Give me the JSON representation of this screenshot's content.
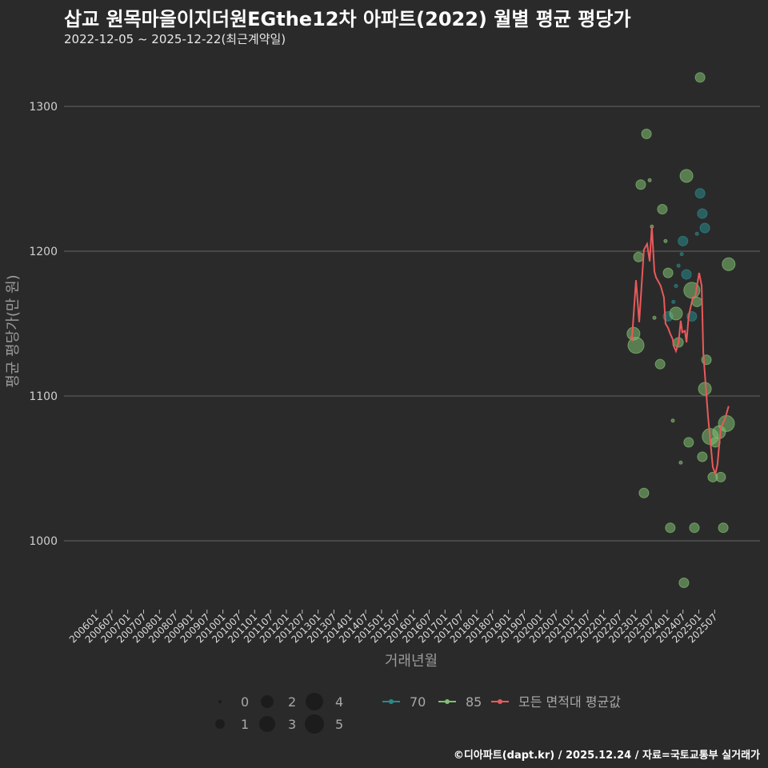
{
  "title": "삽교 원목마을이지더원EGthe12차 아파트(2022) 월별 평균 평당가",
  "subtitle": "2022-12-05 ~ 2025-12-22(최근계약일)",
  "footer": "©디아파트(dapt.kr) / 2025.12.24 / 자료=국토교통부 실거래가",
  "colors": {
    "background": "#2b2a2b",
    "s70": "#2a8a8a",
    "s85": "#7fc070",
    "avg": "#e85a5a",
    "grid": "#666666"
  },
  "chart_data": {
    "type": "scatter",
    "title": "삽교 원목마을이지더원EGthe12차 아파트(2022) 월별 평균 평당가",
    "xlabel": "거래년월",
    "ylabel": "평균 평당가(만 원)",
    "ylim": [
      955,
      1330
    ],
    "xlim": [
      2005.8,
      2026.3
    ],
    "yticks": [
      1000,
      1100,
      1200,
      1300
    ],
    "ytick_labels": [
      "1000",
      "1100",
      "1200",
      "1300"
    ],
    "xtick_labels": [
      "200601",
      "200607",
      "200701",
      "200707",
      "200801",
      "200807",
      "200901",
      "200907",
      "201001",
      "201007",
      "201101",
      "201107",
      "201201",
      "201207",
      "201301",
      "201307",
      "201401",
      "201407",
      "201501",
      "201507",
      "201601",
      "201607",
      "201701",
      "201707",
      "201801",
      "201807",
      "201901",
      "201907",
      "202001",
      "202007",
      "202101",
      "202107",
      "202201",
      "202207",
      "202301",
      "202307",
      "202401",
      "202407",
      "202501",
      "202507"
    ],
    "grid": true,
    "legend": {
      "size_title": "",
      "sizes": [
        0,
        1,
        2,
        3,
        4,
        5
      ],
      "size_labels": [
        "0",
        "1",
        "2",
        "3",
        "4",
        "5"
      ],
      "series_labels": [
        "70",
        "85",
        "모든 면적대 평균값"
      ],
      "placement": "bottom"
    },
    "series": [
      {
        "name": "70",
        "type": "scatter",
        "points": [
          [
            2025.04,
            1240,
            1
          ],
          [
            2025.11,
            1226,
            1
          ],
          [
            2025.19,
            1216,
            1
          ],
          [
            2024.94,
            1212,
            0
          ],
          [
            2024.5,
            1207,
            1
          ],
          [
            2024.46,
            1198,
            0
          ],
          [
            2024.36,
            1190,
            0
          ],
          [
            2024.61,
            1184,
            1
          ],
          [
            2024.28,
            1176,
            0
          ],
          [
            2024.78,
            1155,
            1
          ],
          [
            2024.03,
            1155,
            1
          ],
          [
            2024.2,
            1165,
            0
          ]
        ]
      },
      {
        "name": "85",
        "type": "scatter",
        "points": [
          [
            2025.04,
            1320,
            1
          ],
          [
            2023.35,
            1281,
            1
          ],
          [
            2023.17,
            1246,
            1
          ],
          [
            2023.45,
            1249,
            0
          ],
          [
            2024.61,
            1252,
            2
          ],
          [
            2023.85,
            1229,
            1
          ],
          [
            2023.52,
            1217,
            0
          ],
          [
            2023.95,
            1207,
            0
          ],
          [
            2023.1,
            1196,
            1
          ],
          [
            2025.94,
            1191,
            2
          ],
          [
            2024.03,
            1185,
            1
          ],
          [
            2023.6,
            1154,
            0
          ],
          [
            2023.78,
            1122,
            1
          ],
          [
            2022.94,
            1143,
            2
          ],
          [
            2023.02,
            1135,
            3
          ],
          [
            2024.78,
            1173,
            3
          ],
          [
            2024.36,
            1137,
            1
          ],
          [
            2024.28,
            1157,
            2
          ],
          [
            2024.94,
            1165,
            1
          ],
          [
            2025.24,
            1125,
            1
          ],
          [
            2025.19,
            1105,
            2
          ],
          [
            2023.27,
            1033,
            1
          ],
          [
            2024.18,
            1083,
            0
          ],
          [
            2024.68,
            1068,
            1
          ],
          [
            2024.43,
            1054,
            0
          ],
          [
            2025.11,
            1058,
            1
          ],
          [
            2025.36,
            1072,
            3
          ],
          [
            2025.64,
            1075,
            2
          ],
          [
            2025.87,
            1081,
            3
          ],
          [
            2025.52,
            1068,
            1
          ],
          [
            2025.44,
            1044,
            1
          ],
          [
            2025.69,
            1044,
            1
          ],
          [
            2024.1,
            1009,
            1
          ],
          [
            2024.86,
            1009,
            1
          ],
          [
            2025.77,
            1009,
            1
          ],
          [
            2024.53,
            971,
            1
          ]
        ]
      },
      {
        "name": "모든 면적대 평균값",
        "type": "line",
        "points": [
          [
            2022.84,
            1141
          ],
          [
            2022.89,
            1139
          ],
          [
            2023.02,
            1180
          ],
          [
            2023.12,
            1151
          ],
          [
            2023.27,
            1201
          ],
          [
            2023.37,
            1205
          ],
          [
            2023.45,
            1193
          ],
          [
            2023.52,
            1217
          ],
          [
            2023.6,
            1186
          ],
          [
            2023.65,
            1182
          ],
          [
            2023.8,
            1176
          ],
          [
            2023.9,
            1168
          ],
          [
            2023.95,
            1150
          ],
          [
            2024.03,
            1147
          ],
          [
            2024.1,
            1143
          ],
          [
            2024.18,
            1139
          ],
          [
            2024.2,
            1135
          ],
          [
            2024.28,
            1131
          ],
          [
            2024.36,
            1137
          ],
          [
            2024.43,
            1152
          ],
          [
            2024.48,
            1144
          ],
          [
            2024.56,
            1145
          ],
          [
            2024.61,
            1137
          ],
          [
            2024.68,
            1155
          ],
          [
            2024.81,
            1168
          ],
          [
            2024.89,
            1169
          ],
          [
            2025.01,
            1185
          ],
          [
            2025.09,
            1176
          ],
          [
            2025.14,
            1130
          ],
          [
            2025.29,
            1086
          ],
          [
            2025.44,
            1051
          ],
          [
            2025.52,
            1046
          ],
          [
            2025.59,
            1053
          ],
          [
            2025.69,
            1078
          ],
          [
            2025.82,
            1084
          ],
          [
            2025.94,
            1093
          ]
        ]
      }
    ]
  }
}
